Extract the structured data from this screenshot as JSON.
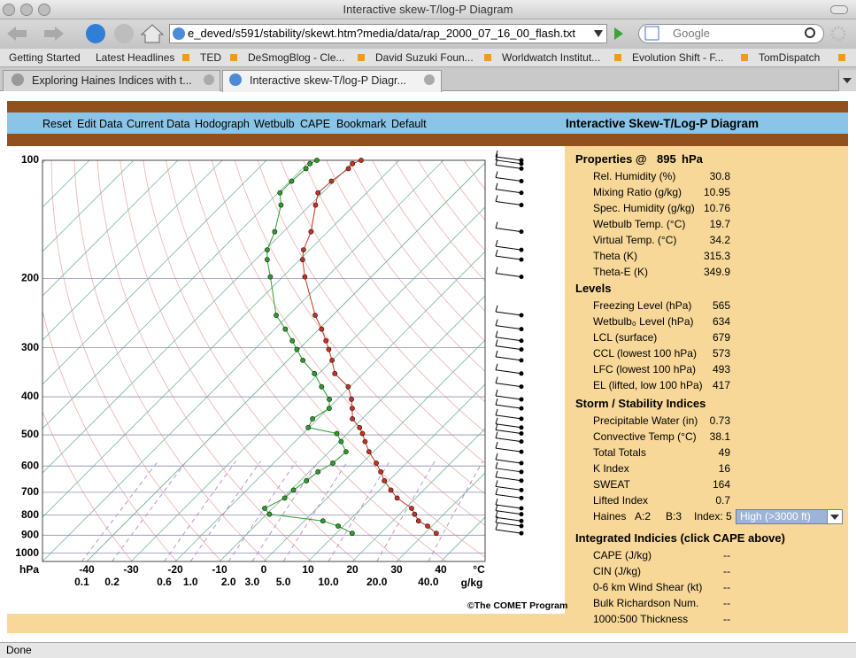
{
  "browser": {
    "window_title": "Interactive skew-T/log-P Diagram",
    "url": "e_deved/s591/stability/skewt.htm?media/data/rap_2000_07_16_00_flash.txt",
    "search_placeholder": "Google",
    "bookmarks": [
      "Getting Started",
      "Latest Headlines",
      "TED",
      "DeSmogBlog - Cle...",
      "David Suzuki Foun...",
      "Worldwatch Institut...",
      "Evolution Shift - F...",
      "TomDispatch"
    ],
    "tabs": [
      "Exploring Haines Indices with t...",
      "Interactive skew-T/log-P Diagr..."
    ],
    "status": "Done"
  },
  "app": {
    "menu": [
      "Reset",
      "Edit Data",
      "Current Data",
      "Hodograph",
      "Wetbulb",
      "CAPE",
      "Bookmark",
      "Default"
    ],
    "title": "Interactive Skew-T/Log-P Diagram",
    "credit": "©The COMET Program"
  },
  "panel": {
    "properties": {
      "heading": "Properties @",
      "pressure": 895,
      "unit": "hPa",
      "rows": [
        {
          "label": "Rel. Humidity (%)",
          "value": 30.8
        },
        {
          "label": "Mixing Ratio (g/kg)",
          "value": 10.95
        },
        {
          "label": "Spec. Humidity (g/kg)",
          "value": 10.76
        },
        {
          "label": "Wetbulb Temp. (°C)",
          "value": 19.7
        },
        {
          "label": "Virtual Temp. (°C)",
          "value": 34.2
        },
        {
          "label": "Theta (K)",
          "value": 315.3
        },
        {
          "label": "Theta-E (K)",
          "value": 349.9
        }
      ]
    },
    "levels": {
      "heading": "Levels",
      "rows": [
        {
          "label": "Freezing Level (hPa)",
          "value": 565
        },
        {
          "label": "Wetbulb₀ Level (hPa)",
          "value": 634
        },
        {
          "label": "LCL (surface)",
          "value": 679
        },
        {
          "label": "CCL (lowest 100 hPa)",
          "value": 573
        },
        {
          "label": "LFC (lowest 100 hPa)",
          "value": 493
        },
        {
          "label": "EL (lifted, low 100 hPa)",
          "value": 417
        }
      ]
    },
    "indices": {
      "heading": "Storm / Stability Indices",
      "rows": [
        {
          "label": "Precipitable Water (in)",
          "value": 0.73
        },
        {
          "label": "Convective Temp (°C)",
          "value": 38.1
        },
        {
          "label": "Total Totals",
          "value": 49
        },
        {
          "label": "K Index",
          "value": 16
        },
        {
          "label": "SWEAT",
          "value": 164
        },
        {
          "label": "Lifted Index",
          "value": 0.7
        }
      ],
      "haines": {
        "label": "Haines",
        "a": "A:2",
        "b": "B:3",
        "index": "Index: 5",
        "option": "High (>3000 ft)"
      }
    },
    "integrated": {
      "heading": "Integrated Indicies (click CAPE above)",
      "rows": [
        {
          "label": "CAPE (J/kg)",
          "value": "--"
        },
        {
          "label": "CIN (J/kg)",
          "value": "--"
        },
        {
          "label": "0-6 km Wind Shear (kt)",
          "value": "--"
        },
        {
          "label": "Bulk Richardson Num.",
          "value": "--"
        },
        {
          "label": "1000:500 Thickness",
          "value": "--"
        }
      ]
    }
  },
  "chart_data": {
    "type": "skewt",
    "x_label": "°C",
    "y_label": "hPa",
    "y_scale": "log",
    "xlim": [
      -50,
      50
    ],
    "ylim": [
      1050,
      100
    ],
    "xticks": [
      -40,
      -30,
      -20,
      -10,
      0,
      10,
      20,
      30,
      40
    ],
    "yticks": [
      100,
      200,
      300,
      400,
      500,
      600,
      700,
      800,
      900,
      1000
    ],
    "mixing_ratio_label": "g/kg",
    "mixing_ratio_ticks": [
      0.1,
      0.2,
      0.6,
      {
        "value": 1,
        "label": "1.0"
      },
      {
        "value": 2,
        "label": "2.0"
      },
      {
        "value": 3,
        "label": "3.0"
      },
      {
        "value": 5,
        "label": "5.0"
      },
      {
        "value": 10,
        "label": "10.0"
      },
      {
        "value": 20,
        "label": "20.0"
      },
      {
        "value": 40,
        "label": "40.0"
      }
    ],
    "pressure": [
      100,
      102,
      105,
      113,
      121,
      130,
      152,
      169,
      179,
      198,
      248,
      269,
      288,
      303,
      323,
      349,
      377,
      406,
      428,
      455,
      479,
      496,
      520,
      552,
      590,
      621,
      654,
      691,
      724,
      769,
      796,
      828,
      853,
      890
    ],
    "series": [
      {
        "color": "#c8321e",
        "values": [
          -68.6,
          -69.8,
          -69.6,
          -70.6,
          -71,
          -68.8,
          -63.8,
          -61.4,
          -59.4,
          -55,
          -44,
          -39.4,
          -35.8,
          -33.2,
          -30,
          -26.4,
          -20.4,
          -16.8,
          -14.6,
          -12.2,
          -8.6,
          -6.6,
          -4.2,
          -1,
          3.2,
          6.2,
          9,
          12.6,
          15.8,
          21.4,
          23.4,
          25.8,
          29,
          32.6
        ]
      },
      {
        "color": "#2e9e2e",
        "values": [
          -78.6,
          -79.4,
          -79.2,
          -79.6,
          -79.6,
          -76.6,
          -72,
          -69.6,
          -67.4,
          -62.8,
          -52.8,
          -47.6,
          -43.4,
          -40.4,
          -36.6,
          -31,
          -26.4,
          -21.8,
          -19.8,
          -21.2,
          -20.2,
          -12.4,
          -9.6,
          -6.2,
          -6.6,
          -8,
          -8.6,
          -9.4,
          -9.6,
          -11.8,
          -9.4,
          4.2,
          8.8,
          13.6
        ]
      }
    ]
  }
}
